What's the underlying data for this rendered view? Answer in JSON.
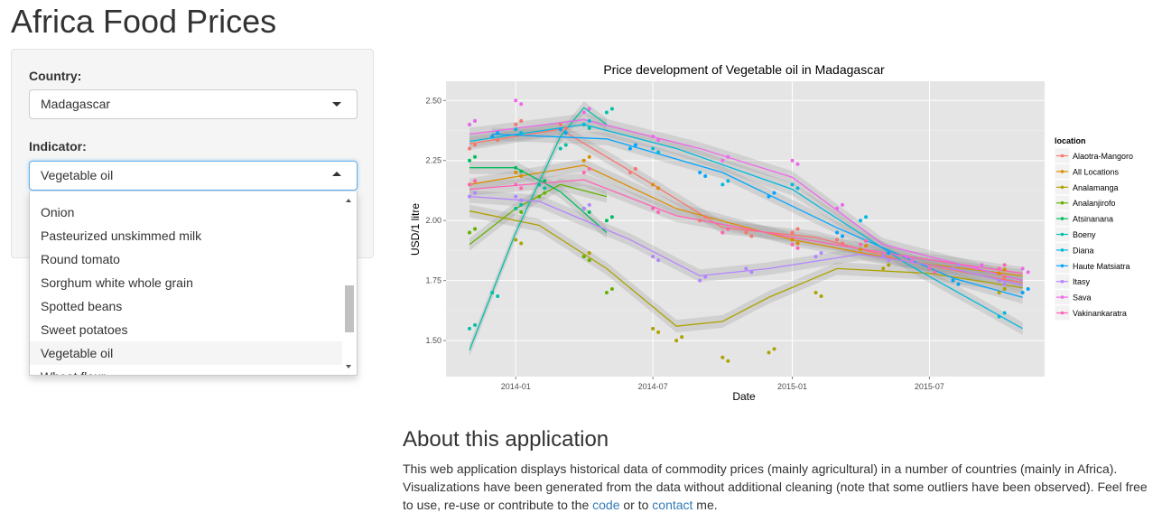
{
  "app": {
    "title": "Africa Food Prices"
  },
  "sidebar": {
    "country_label": "Country:",
    "country_value": "Madagascar",
    "indicator_label": "Indicator:",
    "indicator_value": "Vegetable oil",
    "indicator_options_visible": [
      "Onion",
      "Pasteurized unskimmed milk",
      "Round tomato",
      "Sorghum white whole grain",
      "Spotted beans",
      "Sweet potatoes",
      "Vegetable oil",
      "Wheat flour"
    ]
  },
  "about": {
    "title": "About this application",
    "text_1": "This web application displays historical data of commodity prices (mainly agricultural) in a number of countries (mainly in Africa). Visualizations have been generated from the data without additional cleaning (note that some outliers have been observed). Feel free to use, re-use or contribute to the ",
    "link_code": "code",
    "text_2": " or to ",
    "link_contact": "contact",
    "text_3": " me."
  },
  "chart_data": {
    "type": "scatter",
    "title": "Price development of Vegetable oil in Madagascar",
    "xlabel": "Date",
    "ylabel": "USD/1 litre",
    "x_ticks": [
      "2014-01",
      "2014-07",
      "2015-01",
      "2015-07"
    ],
    "y_ticks": [
      1.5,
      1.75,
      2.0,
      2.25,
      2.5
    ],
    "xlim": [
      "2013-10-01",
      "2015-11-30"
    ],
    "ylim": [
      1.35,
      2.58
    ],
    "legend_title": "location",
    "legend_position": "right",
    "grid": true,
    "series": [
      {
        "name": "Alaotra-Mangoro",
        "color": "#F8766D",
        "points": [
          [
            "2013-11-01",
            2.3
          ],
          [
            "2013-12-01",
            2.35
          ],
          [
            "2014-01-01",
            2.4
          ],
          [
            "2014-03-01",
            2.4
          ],
          [
            "2014-06-01",
            2.2
          ],
          [
            "2014-07-01",
            2.15
          ],
          [
            "2014-09-01",
            2.0
          ],
          [
            "2014-11-01",
            1.95
          ],
          [
            "2015-01-01",
            1.95
          ],
          [
            "2015-03-01",
            1.92
          ],
          [
            "2015-05-01",
            1.85
          ],
          [
            "2015-07-01",
            1.8
          ],
          [
            "2015-10-01",
            1.75
          ]
        ],
        "smooth": [
          [
            "2013-11-01",
            2.32
          ],
          [
            "2014-03-01",
            2.38
          ],
          [
            "2014-07-01",
            2.15
          ],
          [
            "2014-10-01",
            1.97
          ],
          [
            "2015-02-01",
            1.93
          ],
          [
            "2015-06-01",
            1.83
          ],
          [
            "2015-11-01",
            1.74
          ]
        ]
      },
      {
        "name": "All Locations",
        "color": "#DB8E00",
        "points": [
          [
            "2013-11-01",
            2.15
          ],
          [
            "2014-01-01",
            2.2
          ],
          [
            "2014-04-01",
            2.25
          ],
          [
            "2014-07-01",
            2.15
          ],
          [
            "2014-10-01",
            1.95
          ],
          [
            "2015-01-01",
            1.92
          ],
          [
            "2015-04-01",
            1.88
          ],
          [
            "2015-07-01",
            1.8
          ],
          [
            "2015-10-01",
            1.78
          ]
        ],
        "smooth": [
          [
            "2013-11-01",
            2.15
          ],
          [
            "2014-04-01",
            2.23
          ],
          [
            "2014-08-01",
            2.05
          ],
          [
            "2015-01-01",
            1.92
          ],
          [
            "2015-06-01",
            1.83
          ],
          [
            "2015-11-01",
            1.77
          ]
        ]
      },
      {
        "name": "Analamanga",
        "color": "#AEA200",
        "points": [
          [
            "2013-11-01",
            1.95
          ],
          [
            "2014-01-01",
            1.92
          ],
          [
            "2014-04-01",
            1.85
          ],
          [
            "2014-07-01",
            1.55
          ],
          [
            "2014-08-01",
            1.5
          ],
          [
            "2014-10-01",
            1.43
          ],
          [
            "2014-12-01",
            1.45
          ],
          [
            "2015-02-01",
            1.7
          ],
          [
            "2015-05-01",
            1.8
          ],
          [
            "2015-08-01",
            1.75
          ],
          [
            "2015-10-01",
            1.7
          ]
        ],
        "smooth": [
          [
            "2013-11-01",
            2.04
          ],
          [
            "2014-02-01",
            1.98
          ],
          [
            "2014-05-01",
            1.8
          ],
          [
            "2014-08-01",
            1.56
          ],
          [
            "2014-10-01",
            1.58
          ],
          [
            "2014-12-01",
            1.68
          ],
          [
            "2015-03-01",
            1.8
          ],
          [
            "2015-07-01",
            1.78
          ],
          [
            "2015-11-01",
            1.72
          ]
        ]
      },
      {
        "name": "Analanjirofo",
        "color": "#64B200",
        "points": [
          [
            "2013-11-01",
            1.95
          ],
          [
            "2014-01-01",
            2.05
          ],
          [
            "2014-02-01",
            2.1
          ],
          [
            "2014-04-01",
            1.85
          ],
          [
            "2014-05-01",
            1.7
          ]
        ],
        "smooth": [
          [
            "2013-11-01",
            1.9
          ],
          [
            "2014-01-01",
            2.05
          ],
          [
            "2014-03-01",
            2.15
          ],
          [
            "2014-05-01",
            2.1
          ]
        ]
      },
      {
        "name": "Atsinanana",
        "color": "#00BD5C",
        "points": [
          [
            "2013-11-01",
            2.25
          ],
          [
            "2014-01-01",
            2.22
          ],
          [
            "2014-02-01",
            2.15
          ],
          [
            "2014-04-01",
            2.05
          ],
          [
            "2014-05-01",
            2.0
          ]
        ],
        "smooth": [
          [
            "2013-11-01",
            2.22
          ],
          [
            "2014-01-01",
            2.22
          ],
          [
            "2014-03-01",
            2.12
          ],
          [
            "2014-05-01",
            1.95
          ]
        ]
      },
      {
        "name": "Boeny",
        "color": "#00C1A7",
        "points": [
          [
            "2013-11-01",
            1.55
          ],
          [
            "2013-12-01",
            1.7
          ],
          [
            "2014-01-01",
            2.05
          ],
          [
            "2014-02-01",
            2.15
          ],
          [
            "2014-03-01",
            2.3
          ],
          [
            "2014-04-01",
            2.4
          ],
          [
            "2014-05-01",
            2.45
          ]
        ],
        "smooth": [
          [
            "2013-11-01",
            1.46
          ],
          [
            "2014-01-01",
            1.95
          ],
          [
            "2014-03-01",
            2.35
          ],
          [
            "2014-04-01",
            2.47
          ],
          [
            "2014-05-01",
            2.4
          ]
        ]
      },
      {
        "name": "Diana",
        "color": "#00BADE",
        "points": [
          [
            "2013-11-01",
            2.4
          ],
          [
            "2014-01-01",
            2.38
          ],
          [
            "2014-04-01",
            2.4
          ],
          [
            "2014-07-01",
            2.3
          ],
          [
            "2014-10-01",
            2.15
          ],
          [
            "2015-01-01",
            2.15
          ],
          [
            "2015-04-01",
            2.0
          ],
          [
            "2015-07-01",
            1.8
          ],
          [
            "2015-10-01",
            1.6
          ]
        ],
        "smooth": [
          [
            "2013-11-01",
            2.33
          ],
          [
            "2014-04-01",
            2.4
          ],
          [
            "2014-08-01",
            2.3
          ],
          [
            "2015-01-01",
            2.13
          ],
          [
            "2015-06-01",
            1.82
          ],
          [
            "2015-11-01",
            1.55
          ]
        ]
      },
      {
        "name": "Haute Matsiatra",
        "color": "#00A6FF",
        "points": [
          [
            "2013-12-01",
            2.35
          ],
          [
            "2014-03-01",
            2.38
          ],
          [
            "2014-06-01",
            2.3
          ],
          [
            "2014-09-01",
            2.2
          ],
          [
            "2014-12-01",
            2.1
          ],
          [
            "2015-03-01",
            1.95
          ],
          [
            "2015-05-01",
            1.85
          ],
          [
            "2015-08-01",
            1.75
          ],
          [
            "2015-11-01",
            1.7
          ]
        ],
        "smooth": [
          [
            "2013-12-01",
            2.36
          ],
          [
            "2014-05-01",
            2.34
          ],
          [
            "2014-10-01",
            2.2
          ],
          [
            "2015-03-01",
            1.97
          ],
          [
            "2015-08-01",
            1.76
          ],
          [
            "2015-11-01",
            1.68
          ]
        ]
      },
      {
        "name": "Itasy",
        "color": "#B385FF",
        "points": [
          [
            "2013-11-01",
            2.1
          ],
          [
            "2014-01-01",
            2.1
          ],
          [
            "2014-04-01",
            2.05
          ],
          [
            "2014-07-01",
            1.85
          ],
          [
            "2014-09-01",
            1.75
          ],
          [
            "2014-11-01",
            1.8
          ],
          [
            "2015-02-01",
            1.85
          ],
          [
            "2015-05-01",
            1.85
          ],
          [
            "2015-08-01",
            1.8
          ],
          [
            "2015-10-01",
            1.75
          ]
        ],
        "smooth": [
          [
            "2013-11-01",
            2.1
          ],
          [
            "2014-02-01",
            2.08
          ],
          [
            "2014-06-01",
            1.92
          ],
          [
            "2014-09-01",
            1.77
          ],
          [
            "2014-12-01",
            1.8
          ],
          [
            "2015-04-01",
            1.86
          ],
          [
            "2015-08-01",
            1.8
          ],
          [
            "2015-11-01",
            1.73
          ]
        ]
      },
      {
        "name": "Sava",
        "color": "#EF67EB",
        "points": [
          [
            "2013-11-01",
            2.4
          ],
          [
            "2014-01-01",
            2.5
          ],
          [
            "2014-04-01",
            2.45
          ],
          [
            "2014-07-01",
            2.35
          ],
          [
            "2014-10-01",
            2.25
          ],
          [
            "2015-01-01",
            2.25
          ],
          [
            "2015-03-01",
            2.05
          ],
          [
            "2015-06-01",
            1.85
          ],
          [
            "2015-09-01",
            1.8
          ],
          [
            "2015-11-01",
            1.8
          ]
        ],
        "smooth": [
          [
            "2013-11-01",
            2.36
          ],
          [
            "2014-04-01",
            2.42
          ],
          [
            "2014-09-01",
            2.3
          ],
          [
            "2015-01-01",
            2.18
          ],
          [
            "2015-05-01",
            1.9
          ],
          [
            "2015-11-01",
            1.75
          ]
        ]
      },
      {
        "name": "Vakinankaratra",
        "color": "#FF63B6",
        "points": [
          [
            "2013-11-01",
            2.15
          ],
          [
            "2014-01-01",
            2.15
          ],
          [
            "2014-04-01",
            2.2
          ],
          [
            "2014-07-01",
            2.05
          ],
          [
            "2014-10-01",
            1.95
          ],
          [
            "2015-01-01",
            1.9
          ],
          [
            "2015-04-01",
            1.9
          ],
          [
            "2015-07-01",
            1.8
          ],
          [
            "2015-10-01",
            1.8
          ]
        ],
        "smooth": [
          [
            "2013-11-01",
            2.13
          ],
          [
            "2014-04-01",
            2.17
          ],
          [
            "2014-08-01",
            2.02
          ],
          [
            "2015-01-01",
            1.93
          ],
          [
            "2015-06-01",
            1.85
          ],
          [
            "2015-11-01",
            1.78
          ]
        ]
      }
    ]
  }
}
